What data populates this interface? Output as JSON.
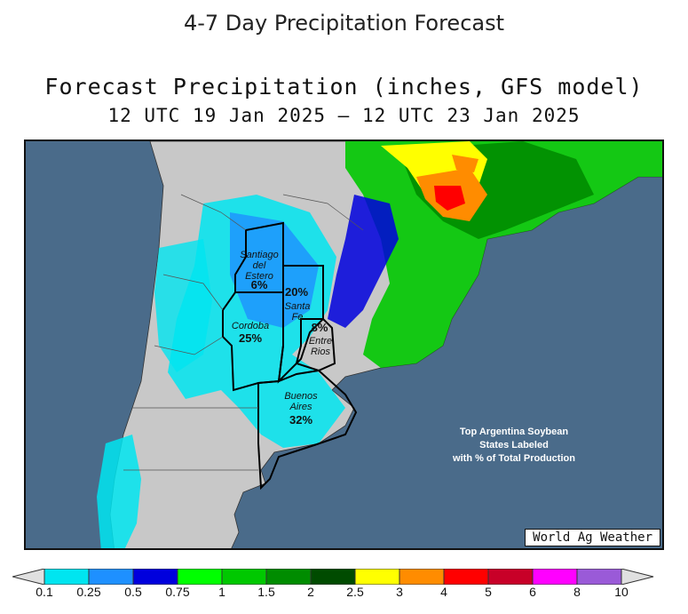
{
  "page": {
    "title": "4-7 Day Precipitation Forecast"
  },
  "map": {
    "title": "Forecast Precipitation (inches, GFS model)",
    "subtitle": "12 UTC 19 Jan 2025 – 12 UTC 23 Jan 2025",
    "credit": "World Ag Weather",
    "note_lines": [
      "Top Argentina Soybean",
      "States Labeled",
      "with % of Total Production"
    ],
    "colors": {
      "ocean": "#4a6b8a",
      "land_dry": "#c8c8c8",
      "border": "#222222"
    },
    "states": [
      {
        "name_lines": [
          "Santiago",
          "del",
          "Estero"
        ],
        "percent": "6%"
      },
      {
        "name_lines": [
          "Santa",
          "Fe"
        ],
        "percent": "20%"
      },
      {
        "name_lines": [
          "Cordoba"
        ],
        "percent": "25%"
      },
      {
        "name_lines": [
          "Entre",
          "Rios"
        ],
        "percent": "8%"
      },
      {
        "name_lines": [
          "Buenos",
          "Aires"
        ],
        "percent": "32%"
      }
    ]
  },
  "legend": {
    "labels": [
      "0.1",
      "0.25",
      "0.5",
      "0.75",
      "1",
      "1.5",
      "2",
      "2.5",
      "3",
      "4",
      "5",
      "6",
      "8",
      "10"
    ],
    "colors": [
      "#00e5f0",
      "#1e90ff",
      "#0000dd",
      "#00ff00",
      "#00c800",
      "#008c00",
      "#004b00",
      "#ffff00",
      "#ff8c00",
      "#ff0000",
      "#c80028",
      "#ff00ff",
      "#9a5ad8"
    ],
    "end_color": "#e0e0e0"
  }
}
